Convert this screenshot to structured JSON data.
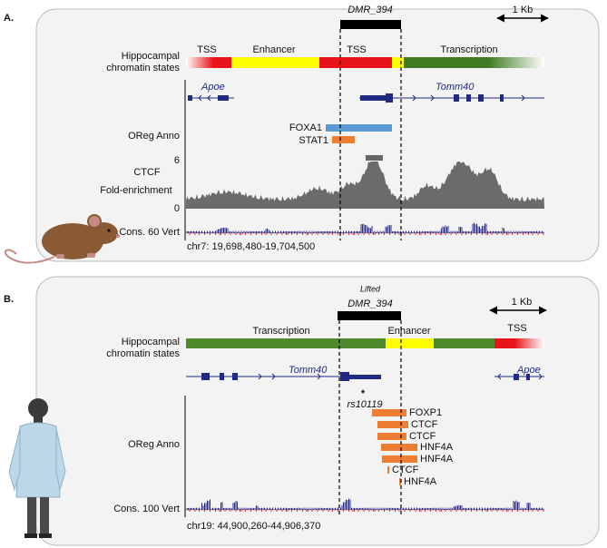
{
  "panel_a": {
    "label": "A.",
    "dmr": "DMR_394",
    "scale": "1 Kb",
    "chromatin_label": [
      "Hippocampal",
      "chromatin states"
    ],
    "state_labels": [
      "TSS",
      "Enhancer",
      "TSS",
      "Transcription"
    ],
    "genes": [
      "Apoe",
      "Tomm40"
    ],
    "oreg_label": "OReg Anno",
    "oreg_features": [
      "FOXA1",
      "STAT1"
    ],
    "ctcf_label": [
      "CTCF",
      "Fold-enrichment"
    ],
    "ctcf_axis": [
      6,
      0
    ],
    "cons_label": "Cons. 60 Vert",
    "coordinates": "chr7: 19,698,480-19,704,500"
  },
  "panel_b": {
    "label": "B.",
    "lifted": "Lifted",
    "dmr": "DMR_394",
    "scale": "1 Kb",
    "chromatin_label": [
      "Hippocampal",
      "chromatin states"
    ],
    "state_labels": [
      "Transcription",
      "Enhancer",
      "TSS"
    ],
    "genes": [
      "Tomm40",
      "Apoe"
    ],
    "snp_marker": "*",
    "snp": "rs10119",
    "oreg_label": "OReg Anno",
    "oreg_features": [
      "FOXP1",
      "CTCF",
      "CTCF",
      "HNF4A",
      "HNF4A",
      "CTCF",
      "HNF4A"
    ],
    "cons_label": "Cons. 100 Vert",
    "coordinates": "chr19: 44,900,260-44,906,370"
  }
}
